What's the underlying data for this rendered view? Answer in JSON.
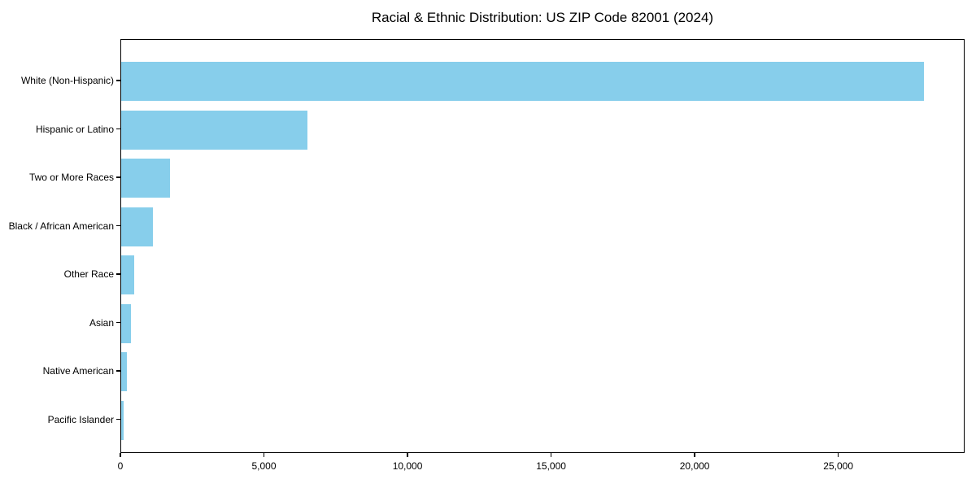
{
  "title": "Racial & Ethnic Distribution: US ZIP Code 82001 (2024)",
  "colors": {
    "bar": "#87CEEB",
    "spine": "#000000",
    "text": "#000000",
    "background": "#ffffff"
  },
  "chart_data": {
    "type": "bar",
    "orientation": "horizontal",
    "title": "Racial & Ethnic Distribution: US ZIP Code 82001 (2024)",
    "xlabel": "",
    "ylabel": "",
    "categories": [
      "White (Non-Hispanic)",
      "Hispanic or Latino",
      "Two or More Races",
      "Black / African American",
      "Other Race",
      "Asian",
      "Native American",
      "Pacific Islander"
    ],
    "values": [
      28000,
      6500,
      1700,
      1100,
      450,
      350,
      200,
      80
    ],
    "xlim": [
      0,
      29400
    ],
    "x_ticks": [
      0,
      5000,
      10000,
      15000,
      20000,
      25000
    ],
    "x_tick_labels": [
      "0",
      "5,000",
      "10,000",
      "15,000",
      "20,000",
      "25,000"
    ],
    "bar_color": "#87CEEB",
    "grid": false,
    "legend": "none"
  }
}
